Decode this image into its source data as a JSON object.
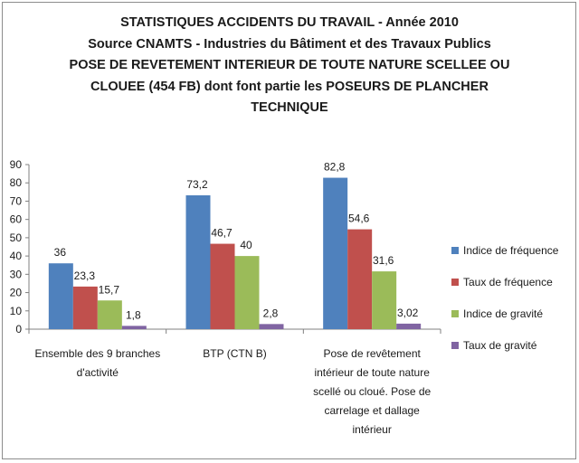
{
  "chart_data": {
    "type": "bar",
    "title_lines": [
      "STATISTIQUES ACCIDENTS DU TRAVAIL - Année 2010",
      "Source CNAMTS - Industries du Bâtiment et des Travaux Publics",
      "POSE DE REVETEMENT INTERIEUR DE TOUTE NATURE SCELLEE OU",
      "CLOUEE (454 FB) dont font partie les POSEURS DE PLANCHER",
      "TECHNIQUE"
    ],
    "categories": [
      "Ensemble des 9 branches d'activité",
      "BTP (CTN B)",
      "Pose de revêtement intérieur de toute nature scellé ou cloué. Pose de carrelage et dallage intérieur"
    ],
    "category_label_lines": [
      [
        "Ensemble des 9 branches",
        "d'activité"
      ],
      [
        "BTP (CTN B)"
      ],
      [
        "Pose de revêtement",
        "intérieur de toute nature",
        "scellé ou cloué. Pose de",
        "carrelage et dallage",
        "intérieur"
      ]
    ],
    "series": [
      {
        "name": "Indice de fréquence",
        "color": "#4f81bd",
        "values": [
          36,
          73.2,
          82.8
        ],
        "labels": [
          "36",
          "73,2",
          "82,8"
        ]
      },
      {
        "name": "Taux de fréquence",
        "color": "#c0504d",
        "values": [
          23.3,
          46.7,
          54.6
        ],
        "labels": [
          "23,3",
          "46,7",
          "54,6"
        ]
      },
      {
        "name": "Indice de gravité",
        "color": "#9bbb59",
        "values": [
          15.7,
          40,
          31.6
        ],
        "labels": [
          "15,7",
          "40",
          "31,6"
        ]
      },
      {
        "name": "Taux de gravité",
        "color": "#8064a2",
        "values": [
          1.8,
          2.8,
          3.02
        ],
        "labels": [
          "1,8",
          "2,8",
          "3,02"
        ]
      }
    ],
    "ylim": [
      0,
      90
    ],
    "yticks": [
      "0",
      "10",
      "20",
      "30",
      "40",
      "50",
      "60",
      "70",
      "80",
      "90"
    ],
    "grid": false,
    "legend_position": "right"
  }
}
